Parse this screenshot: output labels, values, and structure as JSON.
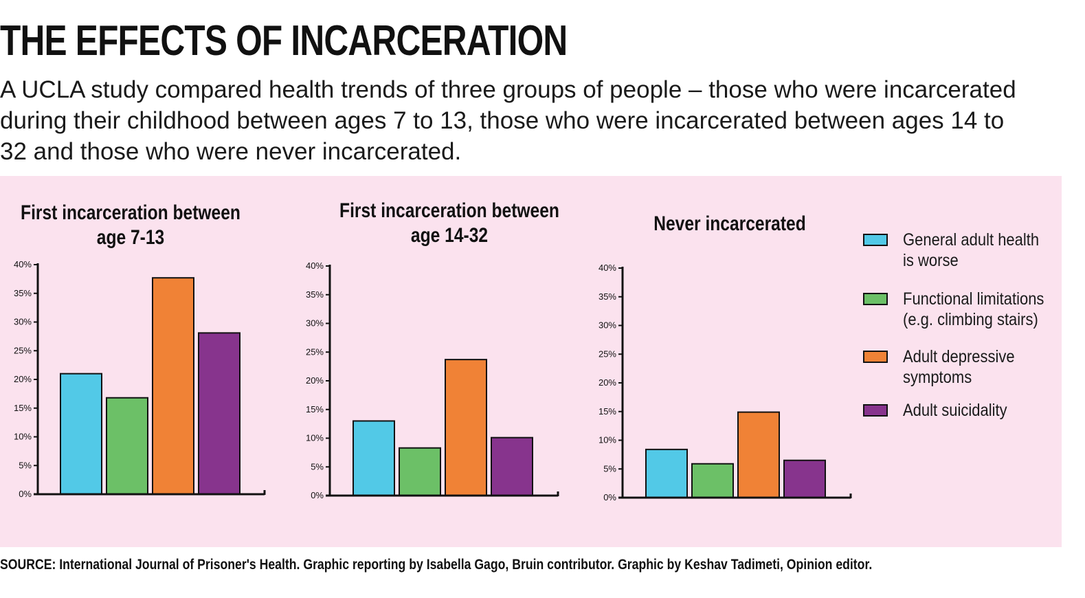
{
  "headline": "THE EFFECTS OF INCARCERATION",
  "dek": "A UCLA study compared health trends of three groups of people – those who were incarcerated during their childhood between ages 7 to 13, those who were incarcerated between ages 14 to 32 and those who were never incarcerated.",
  "source": "SOURCE: International Journal of Prisoner's Health. Graphic reporting by Isabella Gago, Bruin contributor. Graphic by Keshav Tadimeti, Opinion editor.",
  "colors": {
    "panel_background": "#fbe2ee",
    "General adult health is worse": "#52c9e7",
    "Functional limitations (e.g. climbing stairs)": "#6cc067",
    "Adult depressive symptoms": "#f08236",
    "Adult suicidality": "#87348d"
  },
  "legend": [
    {
      "series": "General adult health is worse",
      "lines": [
        "General adult health",
        "is worse"
      ]
    },
    {
      "series": "Functional limitations (e.g. climbing stairs)",
      "lines": [
        "Functional limitations",
        "(e.g. climbing stairs)"
      ]
    },
    {
      "series": "Adult depressive symptoms",
      "lines": [
        "Adult depressive",
        "symptoms"
      ]
    },
    {
      "series": "Adult suicidality",
      "lines": [
        "Adult suicidality"
      ]
    }
  ],
  "chart_data": [
    {
      "type": "bar",
      "title": "First incarceration between age 7-13",
      "title_lines": [
        "First incarceration between",
        "age 7-13"
      ],
      "categories": [
        "General adult health is worse",
        "Functional limitations (e.g. climbing stairs)",
        "Adult depressive symptoms",
        "Adult suicidality"
      ],
      "values": [
        21,
        16.8,
        37.7,
        28.1
      ],
      "ylim": [
        0,
        40
      ],
      "yticks": [
        "0%",
        "5%",
        "10%",
        "15%",
        "20%",
        "25%",
        "30%",
        "35%",
        "40%"
      ],
      "xlabel": "",
      "ylabel": ""
    },
    {
      "type": "bar",
      "title": "First incarceration between age 14-32",
      "title_lines": [
        "First incarceration between",
        "age 14-32"
      ],
      "categories": [
        "General adult health is worse",
        "Functional limitations (e.g. climbing stairs)",
        "Adult depressive symptoms",
        "Adult suicidality"
      ],
      "values": [
        13,
        8.3,
        23.7,
        10.1
      ],
      "ylim": [
        0,
        40
      ],
      "yticks": [
        "0%",
        "5%",
        "10%",
        "15%",
        "20%",
        "25%",
        "30%",
        "35%",
        "40%"
      ],
      "xlabel": "",
      "ylabel": ""
    },
    {
      "type": "bar",
      "title": "Never incarcerated",
      "title_lines": [
        "Never incarcerated"
      ],
      "categories": [
        "General adult health is worse",
        "Functional limitations (e.g. climbing stairs)",
        "Adult depressive symptoms",
        "Adult suicidality"
      ],
      "values": [
        8.4,
        5.9,
        14.9,
        6.5
      ],
      "ylim": [
        0,
        40
      ],
      "yticks": [
        "0%",
        "5%",
        "10%",
        "15%",
        "20%",
        "25%",
        "30%",
        "35%",
        "40%"
      ],
      "xlabel": "",
      "ylabel": ""
    }
  ]
}
